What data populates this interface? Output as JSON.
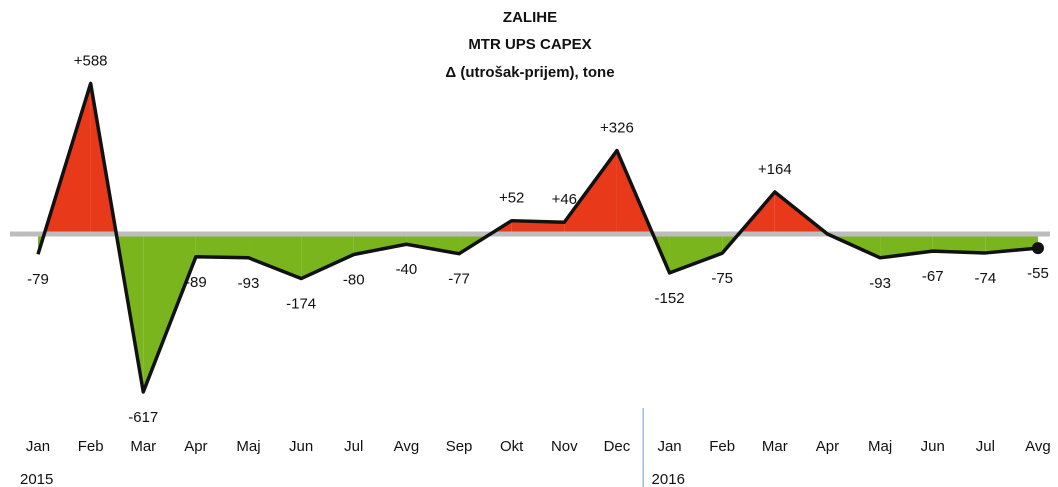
{
  "chart_data": {
    "type": "line",
    "title": "ZALIHE",
    "subtitle": "MTR UPS CAPEX",
    "subtitle2": "Δ (utrošak-prijem), tone",
    "categories": [
      "Jan",
      "Feb",
      "Mar",
      "Apr",
      "Maj",
      "Jun",
      "Jul",
      "Avg",
      "Sep",
      "Okt",
      "Nov",
      "Dec",
      "Jan",
      "Feb",
      "Mar",
      "Apr",
      "Maj",
      "Jun",
      "Jul",
      "Avg"
    ],
    "groups": [
      {
        "name": "2015",
        "count": 12
      },
      {
        "name": "2016",
        "count": 8
      }
    ],
    "values": [
      -79,
      588,
      -617,
      -89,
      -93,
      -174,
      -80,
      -40,
      -77,
      52,
      46,
      326,
      -152,
      -75,
      164,
      0,
      -93,
      -67,
      -74,
      -55
    ],
    "value_labels": [
      "-79",
      "+588",
      "-617",
      "-89",
      "-93",
      "-174",
      "-80",
      "-40",
      "-77",
      "+52",
      "+46",
      "+326",
      "-152",
      "-75",
      "+164",
      null,
      "-93",
      "-67",
      "-74",
      "-55"
    ],
    "color": "#111111",
    "positive_color": "#e8391a",
    "negative_color": "#7ab51d",
    "ylim": [
      -700,
      700
    ]
  }
}
